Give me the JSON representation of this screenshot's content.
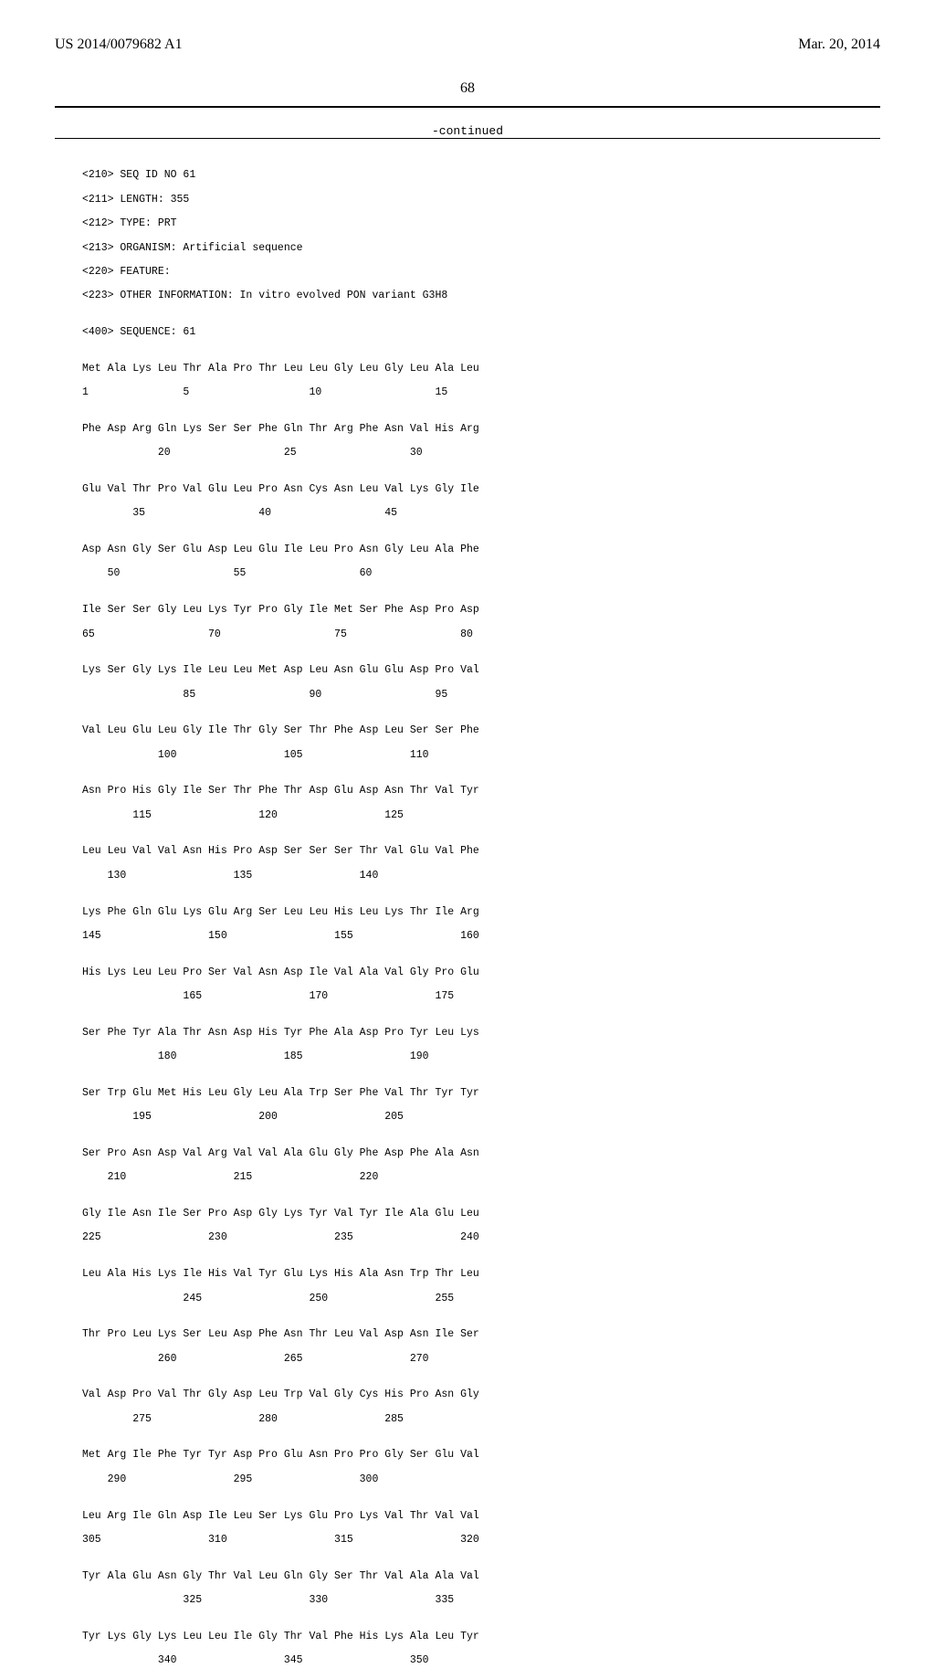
{
  "header": {
    "left": "US 2014/0079682 A1",
    "right": "Mar. 20, 2014"
  },
  "page_number": "68",
  "continued_label": "-continued",
  "meta": {
    "l1": "<210> SEQ ID NO 61",
    "l2": "<211> LENGTH: 355",
    "l3": "<212> TYPE: PRT",
    "l4": "<213> ORGANISM: Artificial sequence",
    "l5": "<220> FEATURE:",
    "l6": "<223> OTHER INFORMATION: In vitro evolved PON variant G3H8",
    "l7": "<400> SEQUENCE: 61"
  },
  "rows": {
    "r1a": "Met Ala Lys Leu Thr Ala Pro Thr Leu Leu Gly Leu Gly Leu Ala Leu",
    "r1b": "1               5                   10                  15",
    "r2a": "Phe Asp Arg Gln Lys Ser Ser Phe Gln Thr Arg Phe Asn Val His Arg",
    "r2b": "            20                  25                  30",
    "r3a": "Glu Val Thr Pro Val Glu Leu Pro Asn Cys Asn Leu Val Lys Gly Ile",
    "r3b": "        35                  40                  45",
    "r4a": "Asp Asn Gly Ser Glu Asp Leu Glu Ile Leu Pro Asn Gly Leu Ala Phe",
    "r4b": "    50                  55                  60",
    "r5a": "Ile Ser Ser Gly Leu Lys Tyr Pro Gly Ile Met Ser Phe Asp Pro Asp",
    "r5b": "65                  70                  75                  80",
    "r6a": "Lys Ser Gly Lys Ile Leu Leu Met Asp Leu Asn Glu Glu Asp Pro Val",
    "r6b": "                85                  90                  95",
    "r7a": "Val Leu Glu Leu Gly Ile Thr Gly Ser Thr Phe Asp Leu Ser Ser Phe",
    "r7b": "            100                 105                 110",
    "r8a": "Asn Pro His Gly Ile Ser Thr Phe Thr Asp Glu Asp Asn Thr Val Tyr",
    "r8b": "        115                 120                 125",
    "r9a": "Leu Leu Val Val Asn His Pro Asp Ser Ser Ser Thr Val Glu Val Phe",
    "r9b": "    130                 135                 140",
    "r10a": "Lys Phe Gln Glu Lys Glu Arg Ser Leu Leu His Leu Lys Thr Ile Arg",
    "r10b": "145                 150                 155                 160",
    "r11a": "His Lys Leu Leu Pro Ser Val Asn Asp Ile Val Ala Val Gly Pro Glu",
    "r11b": "                165                 170                 175",
    "r12a": "Ser Phe Tyr Ala Thr Asn Asp His Tyr Phe Ala Asp Pro Tyr Leu Lys",
    "r12b": "            180                 185                 190",
    "r13a": "Ser Trp Glu Met His Leu Gly Leu Ala Trp Ser Phe Val Thr Tyr Tyr",
    "r13b": "        195                 200                 205",
    "r14a": "Ser Pro Asn Asp Val Arg Val Val Ala Glu Gly Phe Asp Phe Ala Asn",
    "r14b": "    210                 215                 220",
    "r15a": "Gly Ile Asn Ile Ser Pro Asp Gly Lys Tyr Val Tyr Ile Ala Glu Leu",
    "r15b": "225                 230                 235                 240",
    "r16a": "Leu Ala His Lys Ile His Val Tyr Glu Lys His Ala Asn Trp Thr Leu",
    "r16b": "                245                 250                 255",
    "r17a": "Thr Pro Leu Lys Ser Leu Asp Phe Asn Thr Leu Val Asp Asn Ile Ser",
    "r17b": "            260                 265                 270",
    "r18a": "Val Asp Pro Val Thr Gly Asp Leu Trp Val Gly Cys His Pro Asn Gly",
    "r18b": "        275                 280                 285",
    "r19a": "Met Arg Ile Phe Tyr Tyr Asp Pro Glu Asn Pro Pro Gly Ser Glu Val",
    "r19b": "    290                 295                 300",
    "r20a": "Leu Arg Ile Gln Asp Ile Leu Ser Lys Glu Pro Lys Val Thr Val Val",
    "r20b": "305                 310                 315                 320",
    "r21a": "Tyr Ala Glu Asn Gly Thr Val Leu Gln Gly Ser Thr Val Ala Ala Val",
    "r21b": "                325                 330                 335",
    "r22a": "Tyr Lys Gly Lys Leu Leu Ile Gly Thr Val Phe His Lys Ala Leu Tyr",
    "r22b": "            340                 345                 350"
  }
}
